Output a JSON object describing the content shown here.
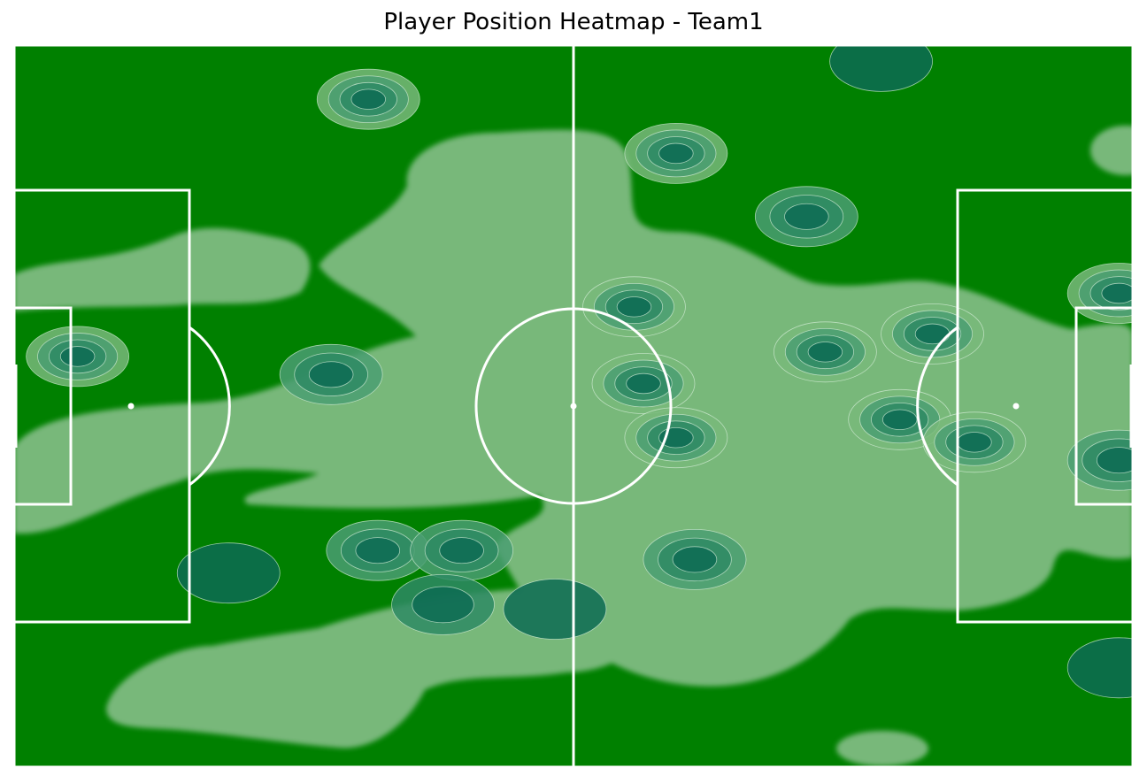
{
  "title": "Player Position Heatmap - Team1",
  "colors": {
    "pitch": "#008000",
    "lines": "#ffffff",
    "density_low": "#78b87a",
    "density_mid": "#4a9e72",
    "density_high": "#2e8a64",
    "density_peak": "#0d6b54",
    "contour": "#d8f0dc"
  },
  "chart_data": {
    "type": "heatmap",
    "title": "Player Position Heatmap - Team1",
    "xlabel": "",
    "ylabel": "",
    "xlim": [
      0,
      120
    ],
    "ylim": [
      0,
      80
    ],
    "grid": false,
    "legend": "none",
    "density_hotspots": [
      {
        "x": 6.8,
        "y": 34.5,
        "level": 4
      },
      {
        "x": 34.0,
        "y": 36.5,
        "level": 3
      },
      {
        "x": 39.0,
        "y": 56.0,
        "level": 3
      },
      {
        "x": 48.0,
        "y": 56.0,
        "level": 3
      },
      {
        "x": 46.0,
        "y": 62.0,
        "level": 2
      },
      {
        "x": 23.0,
        "y": 58.5,
        "level": 1
      },
      {
        "x": 38.0,
        "y": 6.0,
        "level": 4
      },
      {
        "x": 71.0,
        "y": 12.0,
        "level": 4
      },
      {
        "x": 66.5,
        "y": 29.0,
        "level": 4
      },
      {
        "x": 67.5,
        "y": 37.5,
        "level": 4
      },
      {
        "x": 71.0,
        "y": 43.5,
        "level": 4
      },
      {
        "x": 73.0,
        "y": 57.0,
        "level": 3
      },
      {
        "x": 87.0,
        "y": 34.0,
        "level": 4
      },
      {
        "x": 95.0,
        "y": 41.5,
        "level": 4
      },
      {
        "x": 98.5,
        "y": 32.0,
        "level": 4
      },
      {
        "x": 103.0,
        "y": 44.0,
        "level": 4
      },
      {
        "x": 118.5,
        "y": 27.5,
        "level": 4
      },
      {
        "x": 118.5,
        "y": 46.0,
        "level": 3
      },
      {
        "x": 85.0,
        "y": 19.0,
        "level": 3
      },
      {
        "x": 93.0,
        "y": 1.8,
        "level": 1
      },
      {
        "x": 58.0,
        "y": 62.5,
        "level": 1
      },
      {
        "x": 118.5,
        "y": 69.0,
        "level": 1
      }
    ]
  }
}
